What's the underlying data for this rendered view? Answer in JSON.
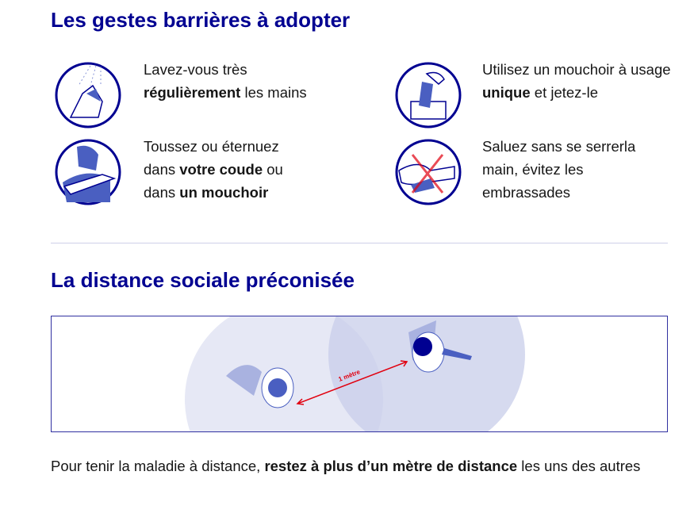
{
  "section1": {
    "title": "Les gestes barrières à adopter",
    "items": [
      {
        "icon": "hand-washing-icon",
        "parts": [
          {
            "t": "Lavez-vous très "
          },
          {
            "b": "régulièrement"
          },
          {
            "t": " les mains"
          }
        ]
      },
      {
        "icon": "tissue-icon",
        "parts": [
          {
            "t": "Utilisez un mouchoir à usage "
          },
          {
            "b": "unique"
          },
          {
            "t": " et jetez-le"
          }
        ]
      },
      {
        "icon": "cough-elbow-icon",
        "parts": [
          {
            "t": "Toussez ou éternuez dans "
          },
          {
            "b": "votre coude"
          },
          {
            "t": " ou dans "
          },
          {
            "b": "un mouchoir"
          }
        ]
      },
      {
        "icon": "no-handshake-icon",
        "parts": [
          {
            "t": "Saluez sans se serrerla main, évitez les embrassades"
          }
        ]
      }
    ]
  },
  "section2": {
    "title": "La distance sociale préconisée",
    "distance_label": "1 mètre",
    "footer_before": "Pour tenir la maladie à distance, ",
    "footer_bold": "restez à plus d’un mètre de distance",
    "footer_after": " les uns des autres"
  },
  "colors": {
    "brand": "#000091",
    "accent": "#e1000f",
    "illustration": "#4a5fc1"
  }
}
